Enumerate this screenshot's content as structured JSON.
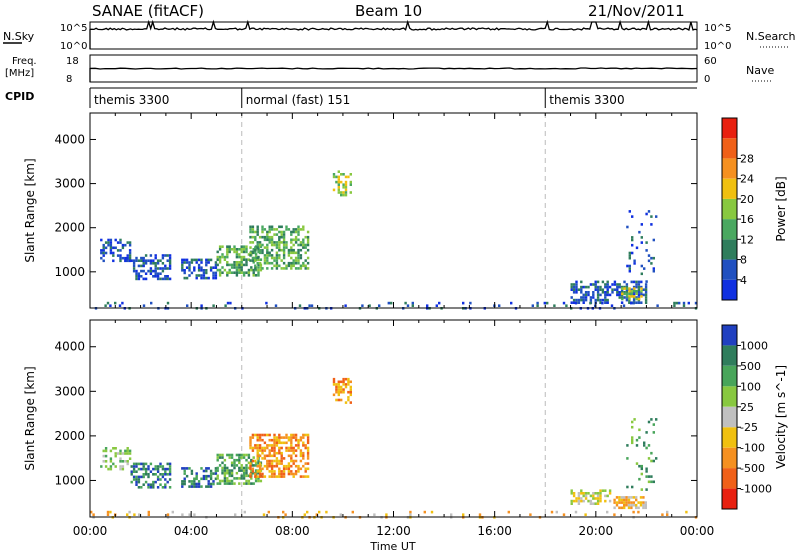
{
  "header": {
    "title": "SANAE (fitACF)",
    "beam": "Beam 10",
    "date": "21/Nov/2011"
  },
  "noise_panel": {
    "left_label": "N.Sky",
    "right_label": "N.Search",
    "left_ticks": [
      "10^5",
      "10^0"
    ],
    "right_ticks": [
      "10^5",
      "10^0"
    ]
  },
  "freq_panel": {
    "left_label_1": "Freq.",
    "left_label_2": "[MHz]",
    "right_label": "Nave",
    "left_ticks": [
      "18",
      "8"
    ],
    "right_ticks": [
      "60",
      "0"
    ]
  },
  "cpid": {
    "label": "CPID",
    "segments": [
      {
        "name": "themis 3300",
        "start": 0,
        "end": 6
      },
      {
        "name": "normal (fast) 151",
        "start": 6,
        "end": 18
      },
      {
        "name": "themis 3300",
        "start": 18,
        "end": 24
      }
    ]
  },
  "x_axis": {
    "label": "Time UT",
    "ticks": [
      "00:00",
      "04:00",
      "08:00",
      "12:00",
      "16:00",
      "20:00",
      "00:00"
    ],
    "range_hours": [
      0,
      24
    ]
  },
  "chart_data": [
    {
      "type": "heatmap",
      "name": "power",
      "ylabel": "Slant Range [km]",
      "yticks": [
        1000,
        2000,
        3000,
        4000
      ],
      "ylim": [
        180,
        4600
      ],
      "colorbar_label": "Power [dB]",
      "colorbar_ticks": [
        "4",
        "8",
        "12",
        "16",
        "20",
        "24",
        "28"
      ],
      "colors": [
        "#1030e0",
        "#2050c0",
        "#2f7d5c",
        "#4aa860",
        "#88c840",
        "#f0c010",
        "#f59020",
        "#f06018",
        "#e82010"
      ],
      "regions": [
        {
          "t": [
            0.4,
            1.6
          ],
          "r": [
            1250,
            1750
          ],
          "level": 1,
          "density": 0.35
        },
        {
          "t": [
            1.6,
            3.2
          ],
          "r": [
            850,
            1400
          ],
          "level": 1,
          "density": 0.55
        },
        {
          "t": [
            3.6,
            5.0
          ],
          "r": [
            850,
            1300
          ],
          "level": 1,
          "density": 0.5
        },
        {
          "t": [
            5.0,
            6.8
          ],
          "r": [
            900,
            1600
          ],
          "level": 3,
          "density": 0.6
        },
        {
          "t": [
            6.3,
            8.6
          ],
          "r": [
            1100,
            2050
          ],
          "level": 3,
          "density": 0.55
        },
        {
          "t": [
            9.6,
            10.3
          ],
          "r": [
            2750,
            3300
          ],
          "level": 4,
          "density": 0.5
        },
        {
          "t": [
            19.0,
            22.0
          ],
          "r": [
            280,
            800
          ],
          "level": 1,
          "density": 0.6
        },
        {
          "t": [
            21.0,
            21.8
          ],
          "r": [
            400,
            650
          ],
          "level": 4,
          "density": 0.55
        },
        {
          "t": [
            21.2,
            22.4
          ],
          "r": [
            800,
            2400
          ],
          "level": 1,
          "density": 0.12
        },
        {
          "t": [
            0.0,
            24.0
          ],
          "r": [
            200,
            320
          ],
          "level": 1,
          "density": 0.12
        }
      ]
    },
    {
      "type": "heatmap",
      "name": "velocity",
      "ylabel": "Slant Range [km]",
      "yticks": [
        1000,
        2000,
        3000,
        4000
      ],
      "ylim": [
        180,
        4600
      ],
      "colorbar_label": "Velocity [m s^-1]",
      "colorbar_ticks": [
        "1000",
        "500",
        "100",
        "25",
        "-25",
        "-100",
        "-500",
        "-1000"
      ],
      "colors": [
        "#2040c0",
        "#2f7d5c",
        "#48a55a",
        "#88c840",
        "#c0c0c0",
        "#f0c010",
        "#f59020",
        "#f06018",
        "#e82010"
      ],
      "regions": [
        {
          "t": [
            0.4,
            1.6
          ],
          "r": [
            1250,
            1750
          ],
          "level": 3,
          "density": 0.3
        },
        {
          "t": [
            1.6,
            3.2
          ],
          "r": [
            850,
            1400
          ],
          "level": 1,
          "density": 0.55
        },
        {
          "t": [
            3.6,
            5.0
          ],
          "r": [
            850,
            1300
          ],
          "level": 1,
          "density": 0.5
        },
        {
          "t": [
            5.0,
            6.8
          ],
          "r": [
            900,
            1600
          ],
          "level": 2,
          "density": 0.6
        },
        {
          "t": [
            6.3,
            8.6
          ],
          "r": [
            1100,
            2050
          ],
          "level": 6,
          "density": 0.55
        },
        {
          "t": [
            9.6,
            10.3
          ],
          "r": [
            2750,
            3300
          ],
          "level": 6,
          "density": 0.55
        },
        {
          "t": [
            19.0,
            20.6
          ],
          "r": [
            450,
            800
          ],
          "level": 4,
          "density": 0.5
        },
        {
          "t": [
            20.6,
            22.0
          ],
          "r": [
            400,
            650
          ],
          "level": 5,
          "density": 0.65
        },
        {
          "t": [
            21.2,
            22.4
          ],
          "r": [
            800,
            2400
          ],
          "level": 2,
          "density": 0.12
        },
        {
          "t": [
            0.0,
            24.0
          ],
          "r": [
            200,
            320
          ],
          "level": 5,
          "density": 0.12
        }
      ]
    }
  ]
}
